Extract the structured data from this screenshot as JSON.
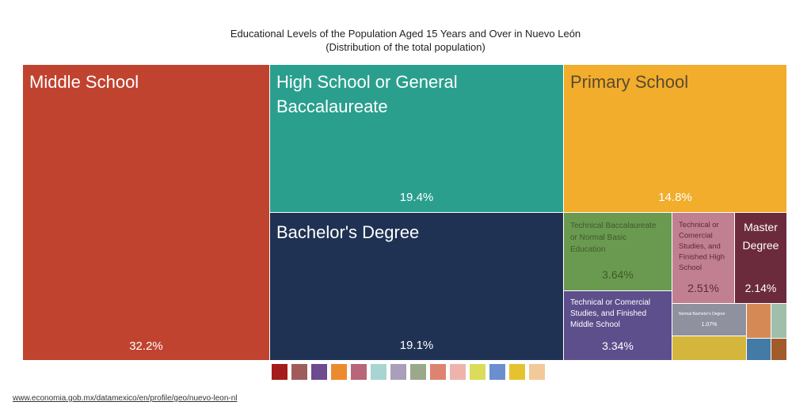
{
  "title": {
    "line1": "Educational Levels of the Population Aged 15 Years and Over in Nuevo León",
    "line2": "(Distribution of the total population)"
  },
  "chart_data": {
    "type": "treemap",
    "title": "Educational Levels of the Population Aged 15 Years and Over in Nuevo León",
    "subtitle": "(Distribution of the total population)",
    "unit": "%",
    "items": [
      {
        "label": "Middle School",
        "value": 32.2,
        "display": "32.2%",
        "color": "#c0432f"
      },
      {
        "label": "High School or General Baccalaureate",
        "value": 19.4,
        "display": "19.4%",
        "color": "#2a9f8e"
      },
      {
        "label": "Bachelor's Degree",
        "value": 19.1,
        "display": "19.1%",
        "color": "#1f3253"
      },
      {
        "label": "Primary School",
        "value": 14.8,
        "display": "14.8%",
        "color": "#f1ad2b"
      },
      {
        "label": "Technical Baccalaureate or Normal Basic Education",
        "value": 3.64,
        "display": "3.64%",
        "color": "#6a9a4f"
      },
      {
        "label": "Technical or Comercial Studies, and Finished Middle School",
        "value": 3.34,
        "display": "3.34%",
        "color": "#5c4f8c"
      },
      {
        "label": "Technical or Comercial Studies, and Finished High School",
        "value": 2.51,
        "display": "2.51%",
        "color": "#c17f92"
      },
      {
        "label": "Master Degree",
        "value": 2.14,
        "display": "2.14%",
        "color": "#6b2b3d"
      },
      {
        "label": "Normal Bachelor's Degree",
        "value": 1.07,
        "display": "1.07%",
        "color": "#8f929e"
      },
      {
        "label": "",
        "value": 0.6,
        "display": "",
        "color": "#d4b63d"
      },
      {
        "label": "",
        "value": 0.3,
        "display": "",
        "color": "#d58a55"
      },
      {
        "label": "",
        "value": 0.2,
        "display": "",
        "color": "#9fbfab"
      },
      {
        "label": "",
        "value": 0.15,
        "display": "",
        "color": "#447aa6"
      },
      {
        "label": "",
        "value": 0.1,
        "display": "",
        "color": "#a35b2b"
      }
    ]
  },
  "legend_colors": [
    "#a51c1c",
    "#a05c5c",
    "#6e4a91",
    "#ec8a2f",
    "#b8677a",
    "#a8d5d1",
    "#a99fb8",
    "#9aa98a",
    "#dd8471",
    "#efb3ad",
    "#dadc5a",
    "#6b8fce",
    "#e7c22f",
    "#f2ca99"
  ],
  "source": "www.economia.gob.mx/datamexico/en/profile/geo/nuevo-leon-nl"
}
